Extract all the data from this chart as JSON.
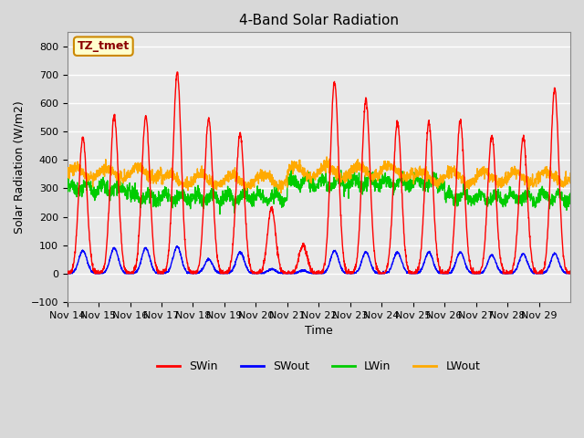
{
  "title": "4-Band Solar Radiation",
  "xlabel": "Time",
  "ylabel": "Solar Radiation (W/m2)",
  "ylim": [
    -100,
    850
  ],
  "yticks": [
    -100,
    0,
    100,
    200,
    300,
    400,
    500,
    600,
    700,
    800
  ],
  "x_labels": [
    "Nov 14",
    "Nov 15",
    "Nov 16",
    "Nov 17",
    "Nov 18",
    "Nov 19",
    "Nov 20",
    "Nov 21",
    "Nov 22",
    "Nov 23",
    "Nov 24",
    "Nov 25",
    "Nov 26",
    "Nov 27",
    "Nov 28",
    "Nov 29"
  ],
  "legend_labels": [
    "SWin",
    "SWout",
    "LWin",
    "LWout"
  ],
  "legend_colors": [
    "#ff0000",
    "#0000ff",
    "#00cc00",
    "#ffaa00"
  ],
  "tag_label": "TZ_tmet",
  "tag_facecolor": "#ffffcc",
  "tag_edgecolor": "#cc8800",
  "colors": {
    "SWin": "#ff0000",
    "SWout": "#0000ff",
    "LWin": "#00cc00",
    "LWout": "#ffaa00"
  },
  "n_days": 16,
  "points_per_day": 144,
  "SWin_peaks": [
    480,
    555,
    555,
    705,
    545,
    495,
    230,
    100,
    675,
    610,
    535,
    530,
    535,
    485,
    480,
    650
  ],
  "SWout_peaks": [
    80,
    90,
    90,
    95,
    50,
    75,
    15,
    10,
    80,
    75,
    75,
    75,
    75,
    65,
    70,
    70
  ]
}
